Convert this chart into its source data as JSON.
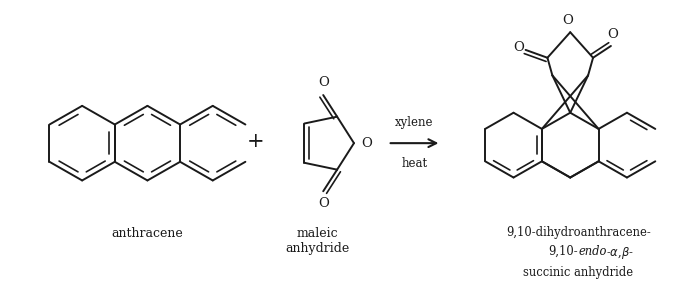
{
  "bg_color": "#ffffff",
  "line_color": "#1a1a1a",
  "figsize": [
    7.0,
    3.03
  ],
  "dpi": 100,
  "anthracene_label": "anthracene",
  "maleic_label": "maleic\nanhydride",
  "condition_line1": "xylene",
  "condition_line2": "heat",
  "plus_sign": "+"
}
